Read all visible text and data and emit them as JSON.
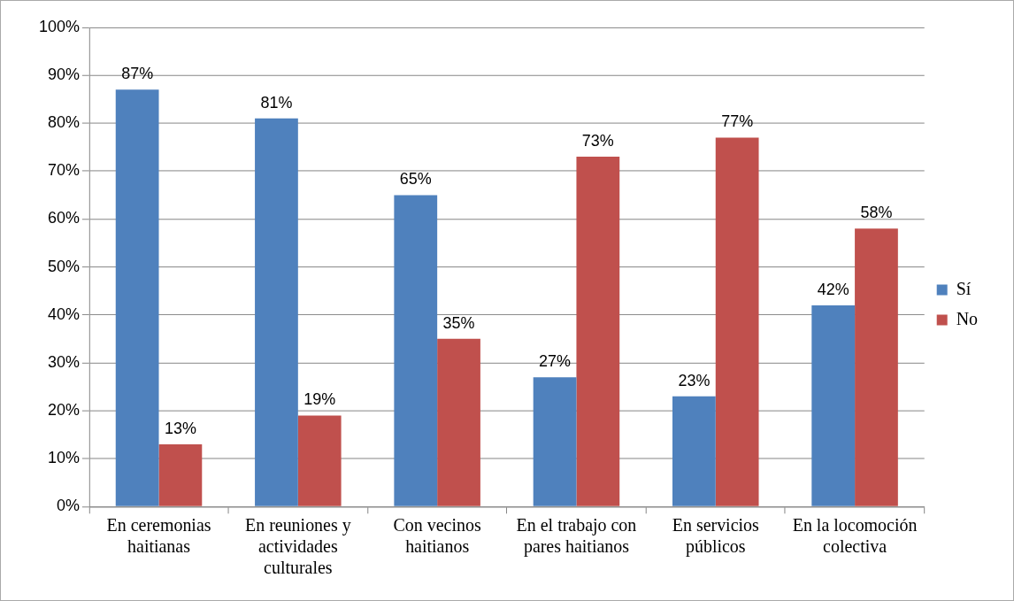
{
  "chart_data": {
    "type": "bar",
    "categories": [
      "En ceremonias haitianas",
      "En reuniones y actividades culturales",
      "Con vecinos haitianos",
      "En el trabajo con pares haitianos",
      "En servicios públicos",
      "En la locomoción colectiva"
    ],
    "series": [
      {
        "name": "Sí",
        "color": "#4f81bd",
        "values": [
          87,
          81,
          65,
          27,
          23,
          42
        ],
        "value_labels": [
          "87%",
          "81%",
          "65%",
          "27%",
          "23%",
          "42%"
        ]
      },
      {
        "name": "No",
        "color": "#c0504d",
        "values": [
          13,
          19,
          35,
          73,
          77,
          58
        ],
        "value_labels": [
          "13%",
          "19%",
          "35%",
          "73%",
          "77%",
          "58%"
        ]
      }
    ],
    "ylim": [
      0,
      100
    ],
    "yticks": [
      {
        "value": 0,
        "label": "0%"
      },
      {
        "value": 10,
        "label": "10%"
      },
      {
        "value": 20,
        "label": "20%"
      },
      {
        "value": 30,
        "label": "30%"
      },
      {
        "value": 40,
        "label": "40%"
      },
      {
        "value": 50,
        "label": "50%"
      },
      {
        "value": 60,
        "label": "60%"
      },
      {
        "value": 70,
        "label": "70%"
      },
      {
        "value": 80,
        "label": "80%"
      },
      {
        "value": 90,
        "label": "90%"
      },
      {
        "value": 100,
        "label": "100%"
      }
    ],
    "grid": "y",
    "legend": "right"
  }
}
